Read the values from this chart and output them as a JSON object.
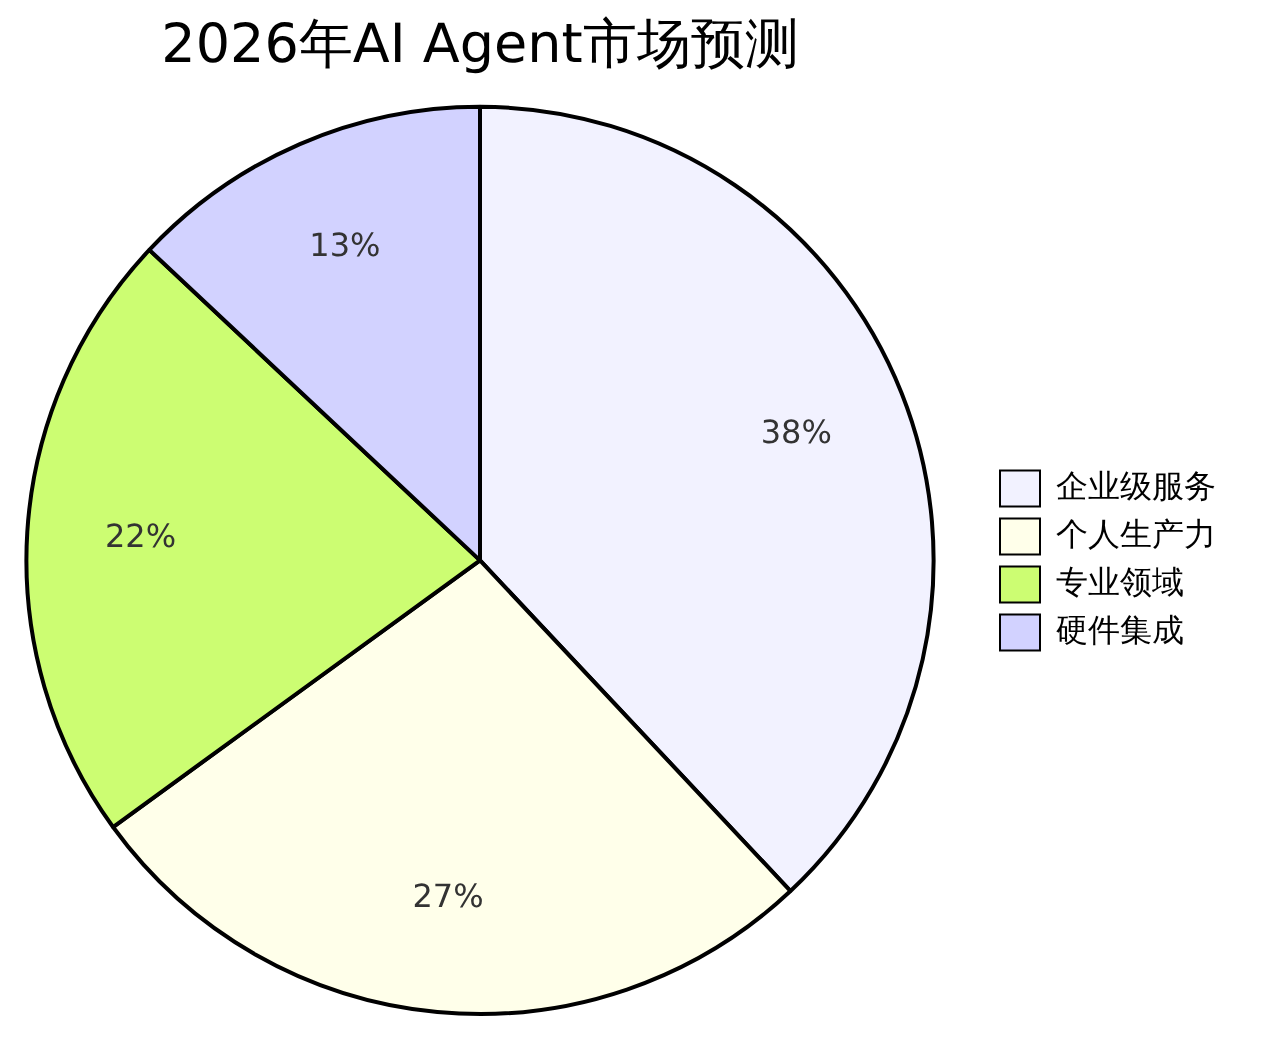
{
  "chart_data": {
    "type": "pie",
    "title": "2026年AI Agent市场预测",
    "categories": [
      "企业级服务",
      "个人生产力",
      "专业领域",
      "硬件集成"
    ],
    "values": [
      38,
      27,
      22,
      13
    ],
    "value_labels": [
      "38%",
      "27%",
      "22%",
      "13%"
    ],
    "colors": [
      "#f2f2ff",
      "#ffffea",
      "#ccfd72",
      "#d2d2ff"
    ],
    "legend": "right"
  }
}
